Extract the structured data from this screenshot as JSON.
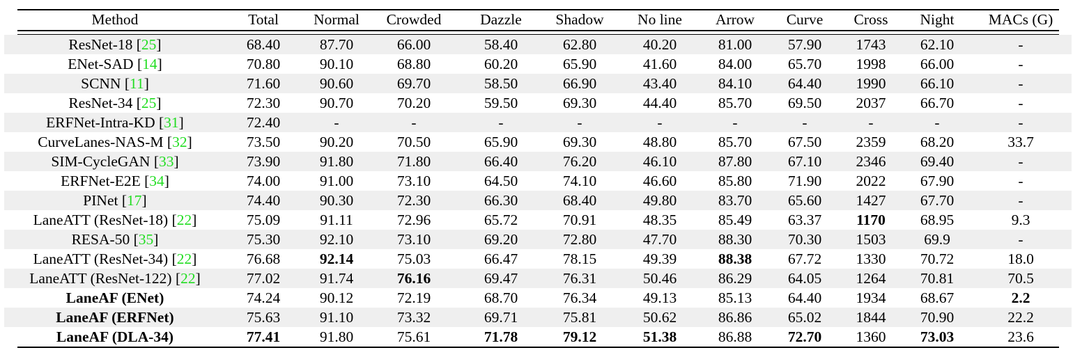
{
  "table": {
    "columns": [
      "Method",
      "Total",
      "Normal",
      "Crowded",
      "Dazzle",
      "Shadow",
      "No line",
      "Arrow",
      "Curve",
      "Cross",
      "Night",
      "MACs (G)"
    ],
    "rows": [
      {
        "method": "ResNet-18",
        "cite": "25",
        "method_bold": false,
        "values": [
          "68.40",
          "87.70",
          "66.00",
          "58.40",
          "62.80",
          "40.20",
          "81.00",
          "57.90",
          "1743",
          "62.10",
          "-"
        ],
        "bold": []
      },
      {
        "method": "ENet-SAD",
        "cite": "14",
        "method_bold": false,
        "values": [
          "70.80",
          "90.10",
          "68.80",
          "60.20",
          "65.90",
          "41.60",
          "84.00",
          "65.70",
          "1998",
          "66.00",
          "-"
        ],
        "bold": []
      },
      {
        "method": "SCNN",
        "cite": "11",
        "method_bold": false,
        "values": [
          "71.60",
          "90.60",
          "69.70",
          "58.50",
          "66.90",
          "43.40",
          "84.10",
          "64.40",
          "1990",
          "66.10",
          "-"
        ],
        "bold": []
      },
      {
        "method": "ResNet-34",
        "cite": "25",
        "method_bold": false,
        "values": [
          "72.30",
          "90.70",
          "70.20",
          "59.50",
          "69.30",
          "44.40",
          "85.70",
          "69.50",
          "2037",
          "66.70",
          "-"
        ],
        "bold": []
      },
      {
        "method": "ERFNet-Intra-KD",
        "cite": "31",
        "method_bold": false,
        "values": [
          "72.40",
          "-",
          "-",
          "-",
          "-",
          "-",
          "-",
          "-",
          "-",
          "-",
          "-"
        ],
        "bold": []
      },
      {
        "method": "CurveLanes-NAS-M",
        "cite": "32",
        "method_bold": false,
        "values": [
          "73.50",
          "90.20",
          "70.50",
          "65.90",
          "69.30",
          "48.80",
          "85.70",
          "67.50",
          "2359",
          "68.20",
          "33.7"
        ],
        "bold": []
      },
      {
        "method": "SIM-CycleGAN",
        "cite": "33",
        "method_bold": false,
        "values": [
          "73.90",
          "91.80",
          "71.80",
          "66.40",
          "76.20",
          "46.10",
          "87.80",
          "67.10",
          "2346",
          "69.40",
          "-"
        ],
        "bold": []
      },
      {
        "method": "ERFNet-E2E",
        "cite": "34",
        "method_bold": false,
        "values": [
          "74.00",
          "91.00",
          "73.10",
          "64.50",
          "74.10",
          "46.60",
          "85.80",
          "71.90",
          "2022",
          "67.90",
          "-"
        ],
        "bold": []
      },
      {
        "method": "PINet",
        "cite": "17",
        "method_bold": false,
        "values": [
          "74.40",
          "90.30",
          "72.30",
          "66.30",
          "68.40",
          "49.80",
          "83.70",
          "65.60",
          "1427",
          "67.70",
          "-"
        ],
        "bold": []
      },
      {
        "method": "LaneATT (ResNet-18)",
        "cite": "22",
        "method_bold": false,
        "values": [
          "75.09",
          "91.11",
          "72.96",
          "65.72",
          "70.91",
          "48.35",
          "85.49",
          "63.37",
          "1170",
          "68.95",
          "9.3"
        ],
        "bold": [
          8
        ]
      },
      {
        "method": "RESA-50",
        "cite": "35",
        "method_bold": false,
        "values": [
          "75.30",
          "92.10",
          "73.10",
          "69.20",
          "72.80",
          "47.70",
          "88.30",
          "70.30",
          "1503",
          "69.9",
          "-"
        ],
        "bold": []
      },
      {
        "method": "LaneATT (ResNet-34)",
        "cite": "22",
        "method_bold": false,
        "values": [
          "76.68",
          "92.14",
          "75.03",
          "66.47",
          "78.15",
          "49.39",
          "88.38",
          "67.72",
          "1330",
          "70.72",
          "18.0"
        ],
        "bold": [
          1,
          6
        ]
      },
      {
        "method": "LaneATT (ResNet-122)",
        "cite": "22",
        "method_bold": false,
        "values": [
          "77.02",
          "91.74",
          "76.16",
          "69.47",
          "76.31",
          "50.46",
          "86.29",
          "64.05",
          "1264",
          "70.81",
          "70.5"
        ],
        "bold": [
          2
        ]
      },
      {
        "method": "LaneAF (ENet)",
        "cite": null,
        "method_bold": true,
        "values": [
          "74.24",
          "90.12",
          "72.19",
          "68.70",
          "76.34",
          "49.13",
          "85.13",
          "64.40",
          "1934",
          "68.67",
          "2.2"
        ],
        "bold": [
          10
        ]
      },
      {
        "method": "LaneAF (ERFNet)",
        "cite": null,
        "method_bold": true,
        "values": [
          "75.63",
          "91.10",
          "73.32",
          "69.71",
          "75.81",
          "50.62",
          "86.86",
          "65.02",
          "1844",
          "70.90",
          "22.2"
        ],
        "bold": []
      },
      {
        "method": "LaneAF (DLA-34)",
        "cite": null,
        "method_bold": true,
        "values": [
          "77.41",
          "91.80",
          "75.61",
          "71.78",
          "79.12",
          "51.38",
          "86.88",
          "72.70",
          "1360",
          "73.03",
          "23.6"
        ],
        "bold": [
          0,
          3,
          4,
          5,
          7,
          9
        ]
      }
    ]
  },
  "colors": {
    "citation": "#22dd22",
    "stripe": "#efefef",
    "text": "#000000"
  }
}
